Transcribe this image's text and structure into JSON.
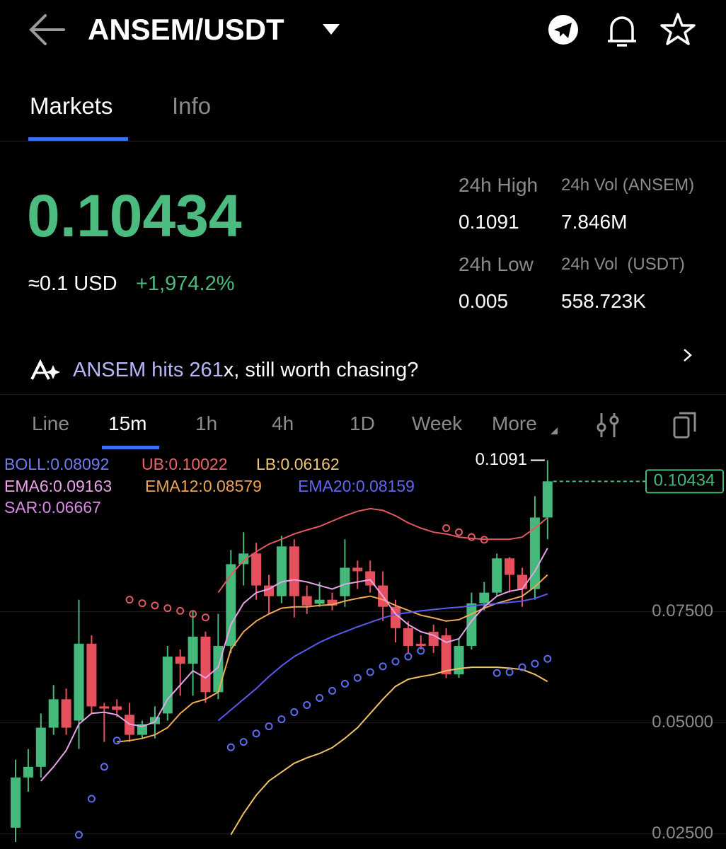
{
  "header": {
    "pair": "ANSEM/USDT"
  },
  "tabs": [
    "Markets",
    "Info"
  ],
  "price": {
    "last": 0.10434,
    "usd": "≈0.1 USD",
    "change": "+1,974.2%"
  },
  "stats": [
    {
      "label": "24h High",
      "value": 0.1091
    },
    {
      "label": "24h Vol (ANSEM)",
      "value": "7.846M"
    },
    {
      "label": "24h Low",
      "value": 0.005
    },
    {
      "label": "24h Vol  (USDT)",
      "value": "558.723K"
    }
  ],
  "banner": {
    "highlight": "ANSEM hits 261",
    "text": "x, still worth chasing?"
  },
  "intervals": [
    "Line",
    "15m",
    "1h",
    "4h",
    "1D",
    "Week",
    "More"
  ],
  "chart_data": {
    "type": "candlestick",
    "up_color": "#45b97c",
    "down_color": "#e5505c",
    "ylim": [
      0.0216,
      0.1114
    ],
    "yticks": [
      {
        "value": 0.075,
        "label": "0.07500"
      },
      {
        "value": 0.05,
        "label": "0.05000"
      },
      {
        "value": 0.025,
        "label": "0.02500"
      }
    ],
    "grid": true,
    "indicators": [
      {
        "label": "BOLL:0.08092",
        "color": "#6f7cf0"
      },
      {
        "label": "UB:0.10022",
        "color": "#e8646a"
      },
      {
        "label": "LB:0.06162",
        "color": "#eec46c"
      },
      {
        "label": "EMA6:0.09163",
        "color": "#e9a2e6"
      },
      {
        "label": "EMA12:0.08579",
        "color": "#eda256"
      },
      {
        "label": "EMA20:0.08159",
        "color": "#6565f2"
      },
      {
        "label": "SAR:0.06667",
        "color": "#d98ce6"
      }
    ],
    "open": [
      0.0264,
      0.0377,
      0.0401,
      0.0489,
      0.0553,
      0.0505,
      0.0678,
      0.0537,
      0.0537,
      0.0518,
      0.0473,
      0.0497,
      0.0521,
      0.0649,
      0.0633,
      0.0694,
      0.0569,
      0.0673,
      0.0857,
      0.0881,
      0.0809,
      0.0785,
      0.0897,
      0.0785,
      0.0768,
      0.0777,
      0.0785,
      0.0849,
      0.0841,
      0.0809,
      0.0761,
      0.0713,
      0.0678,
      0.0705,
      0.0697,
      0.0609,
      0.0673,
      0.0769,
      0.0793,
      0.087,
      0.0833,
      0.0801,
      0.0962
    ],
    "high": [
      0.0417,
      0.0441,
      0.0521,
      0.0585,
      0.0577,
      0.0777,
      0.0697,
      0.0545,
      0.0553,
      0.0545,
      0.0505,
      0.0537,
      0.0673,
      0.0665,
      0.0753,
      0.0705,
      0.0745,
      0.0889,
      0.0929,
      0.0905,
      0.0833,
      0.0921,
      0.0913,
      0.0809,
      0.0817,
      0.0793,
      0.0913,
      0.0865,
      0.0865,
      0.0841,
      0.0777,
      0.0729,
      0.0697,
      0.0721,
      0.0713,
      0.0689,
      0.0793,
      0.0817,
      0.0881,
      0.0873,
      0.0849,
      0.101,
      0.1091
    ],
    "low": [
      0.0232,
      0.0345,
      0.0377,
      0.0473,
      0.0473,
      0.0441,
      0.0521,
      0.0457,
      0.0513,
      0.0457,
      0.0465,
      0.0465,
      0.0505,
      0.0561,
      0.0561,
      0.0545,
      0.0553,
      0.0657,
      0.0809,
      0.0777,
      0.0745,
      0.0769,
      0.0737,
      0.0745,
      0.0761,
      0.0753,
      0.0761,
      0.0801,
      0.0793,
      0.0729,
      0.0681,
      0.0657,
      0.0665,
      0.0657,
      0.0601,
      0.0601,
      0.0665,
      0.0753,
      0.0785,
      0.0793,
      0.0761,
      0.0777,
      0.0913
    ],
    "close": [
      0.0377,
      0.0401,
      0.0489,
      0.0553,
      0.0489,
      0.0678,
      0.0537,
      0.0532,
      0.0529,
      0.0473,
      0.0497,
      0.0513,
      0.0649,
      0.0633,
      0.0694,
      0.0569,
      0.0673,
      0.0857,
      0.0881,
      0.0809,
      0.0785,
      0.0897,
      0.0785,
      0.0764,
      0.0777,
      0.0764,
      0.0849,
      0.0841,
      0.0809,
      0.0761,
      0.0713,
      0.0673,
      0.0673,
      0.0673,
      0.0609,
      0.0673,
      0.0769,
      0.0793,
      0.087,
      0.0833,
      0.0801,
      0.0962,
      0.10434
    ],
    "lines": [
      {
        "color": "#e05a5f",
        "values": [
          null,
          null,
          null,
          null,
          null,
          null,
          null,
          null,
          null,
          null,
          null,
          null,
          null,
          null,
          null,
          null,
          0.0793,
          0.0833,
          0.0865,
          0.0885,
          0.0902,
          0.0913,
          0.0925,
          0.0934,
          0.0942,
          0.0954,
          0.0966,
          0.0976,
          0.0982,
          0.0978,
          0.0966,
          0.095,
          0.0938,
          0.0929,
          0.0925,
          0.0918,
          0.0915,
          0.0913,
          0.0913,
          0.0913,
          0.0918,
          0.0938,
          0.0962
        ]
      },
      {
        "color": "#f0c266",
        "values": [
          null,
          null,
          null,
          null,
          null,
          null,
          null,
          null,
          null,
          null,
          null,
          null,
          null,
          null,
          null,
          null,
          null,
          0.0248,
          0.0296,
          0.0337,
          0.0369,
          0.0389,
          0.0409,
          0.0421,
          0.0431,
          0.0444,
          0.0465,
          0.0489,
          0.0521,
          0.0553,
          0.0582,
          0.0598,
          0.0604,
          0.0609,
          0.0617,
          0.0622,
          0.0625,
          0.0625,
          0.0625,
          0.0623,
          0.062,
          0.0609,
          0.0593
        ]
      },
      {
        "color": "#f0a852",
        "values": [
          null,
          null,
          null,
          null,
          null,
          null,
          null,
          null,
          0.0457,
          0.046,
          0.0465,
          0.0473,
          0.0489,
          0.0521,
          0.0545,
          0.0553,
          0.0569,
          0.0665,
          0.0705,
          0.0729,
          0.0745,
          0.0758,
          0.0761,
          0.0761,
          0.0764,
          0.0766,
          0.0774,
          0.078,
          0.0785,
          0.0777,
          0.0764,
          0.0753,
          0.0742,
          0.0736,
          0.0729,
          0.0732,
          0.0745,
          0.0758,
          0.0769,
          0.0777,
          0.0785,
          0.0806,
          0.0833
        ]
      },
      {
        "color": "#5a5af0",
        "values": [
          null,
          null,
          null,
          null,
          null,
          null,
          null,
          null,
          null,
          null,
          null,
          null,
          null,
          null,
          null,
          null,
          0.0505,
          0.0529,
          0.0553,
          0.0577,
          0.0604,
          0.0628,
          0.0649,
          0.0665,
          0.0681,
          0.0694,
          0.0705,
          0.0716,
          0.0726,
          0.0736,
          0.0744,
          0.0748,
          0.0752,
          0.0755,
          0.0758,
          0.076,
          0.0763,
          0.0766,
          0.0768,
          0.0771,
          0.0774,
          0.078,
          0.079
        ]
      },
      {
        "color": "#e8a2e8",
        "values": [
          null,
          null,
          0.0369,
          0.0401,
          0.0438,
          0.0497,
          0.0521,
          0.0524,
          0.0518,
          0.0497,
          0.0492,
          0.0502,
          0.0553,
          0.0585,
          0.0617,
          0.0601,
          0.0625,
          0.0721,
          0.0769,
          0.0793,
          0.0801,
          0.0817,
          0.0822,
          0.0817,
          0.0809,
          0.0801,
          0.0812,
          0.0817,
          0.0822,
          0.0785,
          0.0745,
          0.0721,
          0.0705,
          0.0697,
          0.0681,
          0.0689,
          0.0729,
          0.0761,
          0.0785,
          0.0796,
          0.0801,
          0.0841,
          0.0893
        ]
      }
    ],
    "sar": [
      null,
      null,
      null,
      null,
      null,
      0.0248,
      0.0329,
      0.0401,
      0.046,
      0.0777,
      0.0769,
      0.0764,
      0.0758,
      0.0752,
      0.0745,
      0.0737,
      null,
      0.0445,
      0.0457,
      0.0476,
      0.0492,
      0.0508,
      0.0524,
      0.054,
      0.0556,
      0.0572,
      0.0588,
      0.0601,
      0.0614,
      0.0627,
      0.0638,
      0.0649,
      0.0662,
      null,
      0.0938,
      0.0929,
      0.0918,
      0.0912,
      0.0612,
      0.0614,
      0.0625,
      0.0633,
      0.0644
    ],
    "sar_color_above": "#e05a5f",
    "sar_color_below": "#5c6cf0",
    "max_marker": 0.1091,
    "last_price": 0.10434
  }
}
